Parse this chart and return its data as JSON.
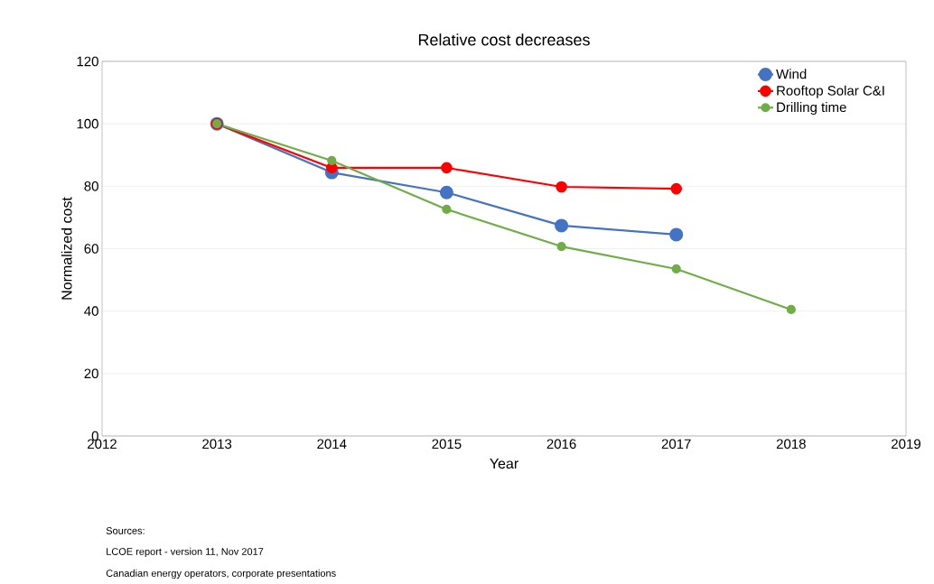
{
  "chart_data": {
    "type": "line",
    "title": "Relative cost decreases",
    "xlabel": "Year",
    "ylabel": "Normalized cost",
    "x": [
      2013,
      2014,
      2015,
      2016,
      2017,
      2018
    ],
    "series": [
      {
        "name": "Wind",
        "color": "#4472c4",
        "values": [
          100,
          84.4,
          78,
          67.4,
          64.5,
          null
        ]
      },
      {
        "name": "Rooftop Solar C&I",
        "color": "#ff0000",
        "values": [
          100,
          85.9,
          85.9,
          79.8,
          79.2,
          null
        ]
      },
      {
        "name": "Drilling time",
        "color": "#70ad47",
        "values": [
          100,
          88.2,
          72.6,
          60.7,
          53.5,
          40.5
        ]
      }
    ],
    "xlim": [
      2012,
      2019
    ],
    "xticks": [
      2012,
      2013,
      2014,
      2015,
      2016,
      2017,
      2018,
      2019
    ],
    "ylim": [
      0,
      120
    ],
    "yticks": [
      0,
      20,
      40,
      60,
      80,
      100,
      120
    ],
    "grid": "y",
    "legend": "top right",
    "marker": "circle",
    "line_style": "solid",
    "annotations": [
      "Sources:",
      "LCOE report - version 11, Nov 2017",
      "Canadian energy operators, corporate presentations"
    ]
  }
}
